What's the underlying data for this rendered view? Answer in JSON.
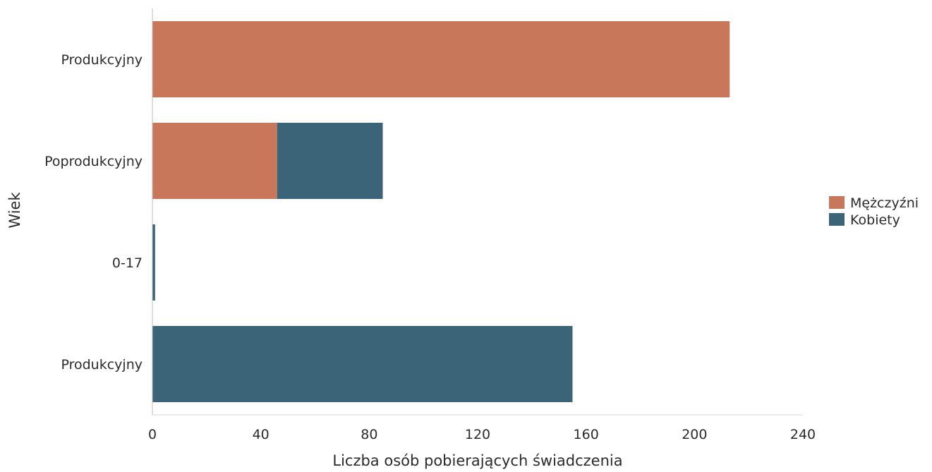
{
  "chart_data": {
    "type": "bar",
    "orientation": "horizontal",
    "stacked": true,
    "categories": [
      "Produkcyjny",
      "Poprodukcyjny",
      "0-17",
      "Produkcyjny"
    ],
    "series": [
      {
        "name": "Mężczyźni",
        "color": "#c9775a",
        "values": [
          213,
          46,
          0,
          0
        ]
      },
      {
        "name": "Kobiety",
        "color": "#3c6478",
        "values": [
          0,
          39,
          1,
          155
        ]
      }
    ],
    "xlabel": "Liczba osób pobierających świadczenia",
    "ylabel": "Wiek",
    "xlim": [
      0,
      240
    ],
    "xticks": [
      0,
      40,
      80,
      120,
      160,
      200,
      240
    ],
    "grid": false,
    "legend_position": "right"
  }
}
